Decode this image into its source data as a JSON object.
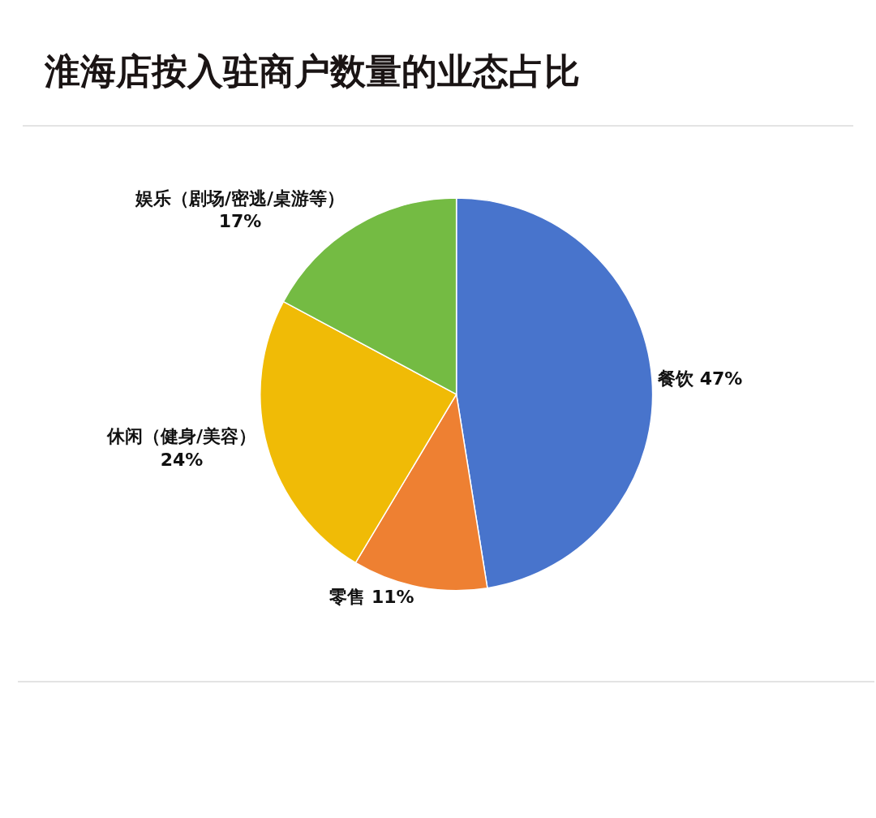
{
  "chart_data": {
    "type": "pie",
    "title": "淮海店按入驻商户数量的业态占比",
    "categories": [
      "餐饮",
      "零售",
      "休闲（健身/美容）",
      "娱乐（剧场/密逃/桌游等）"
    ],
    "values": [
      47,
      11,
      24,
      17
    ],
    "value_labels": [
      "47%",
      "11%",
      "24%",
      "17%"
    ],
    "colors": [
      "#4874cc",
      "#ee8032",
      "#f0bb06",
      "#74bb43"
    ],
    "legend": false
  }
}
